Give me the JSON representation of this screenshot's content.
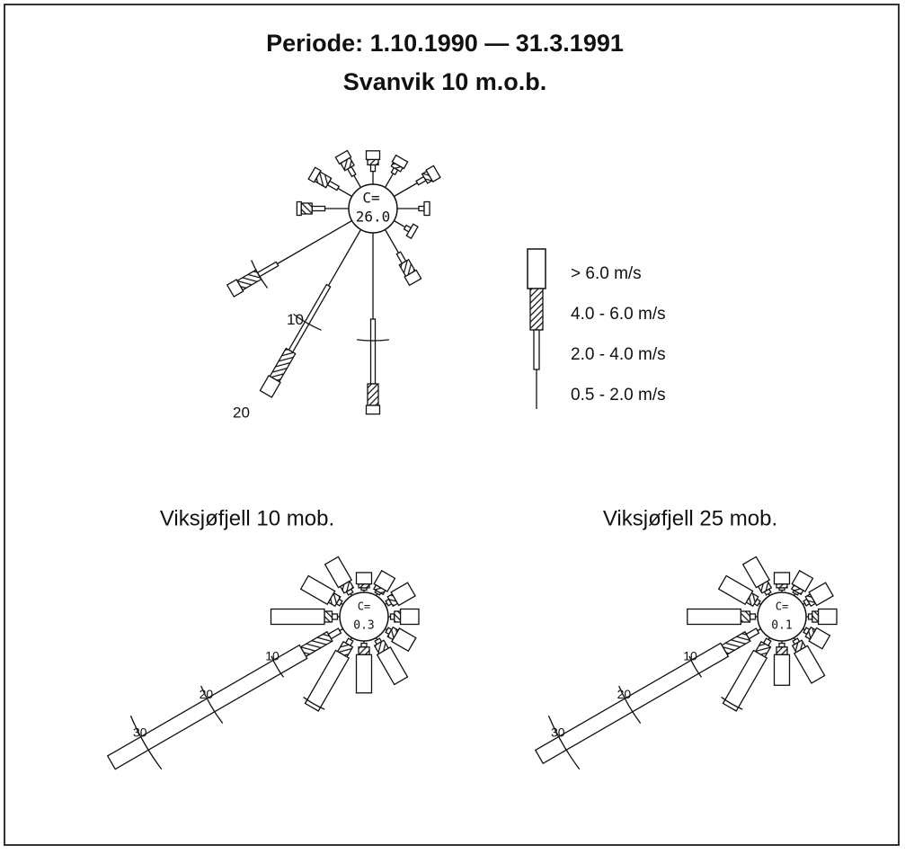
{
  "chart_data": [
    {
      "type": "windrose",
      "title": "Periode: 1.10.1990 — 31.3.1991",
      "subtitle": "Svanvik 10 m.o.b.",
      "calm_prefix": "C=",
      "calm": 26.0,
      "calm_value_label": "26.0",
      "directions": [
        0,
        30,
        60,
        90,
        120,
        150,
        180,
        210,
        240,
        270,
        300,
        330
      ],
      "rings": [
        10,
        20
      ],
      "series": [
        {
          "name": "0.5 - 2.0 m/s",
          "values": [
            1.2,
            1.5,
            2.5,
            2,
            1.2,
            2.5,
            8,
            6,
            8,
            2.2,
            1.5,
            1.3
          ]
        },
        {
          "name": "2.0 - 4.0 m/s",
          "values": [
            0.6,
            0.5,
            0.8,
            0.5,
            0.5,
            1,
            6,
            7,
            2,
            1.2,
            1,
            0.8
          ]
        },
        {
          "name": "4.0 - 6.0 m/s",
          "values": [
            0.5,
            0.4,
            0.5,
            0,
            0,
            1.2,
            2,
            3,
            2,
            1,
            1.2,
            0.8
          ]
        },
        {
          "name": "> 6.0 m/s",
          "values": [
            0.8,
            0.7,
            0.8,
            0.5,
            0.5,
            0.9,
            0.8,
            1.6,
            1,
            0.4,
            0.6,
            0.7
          ]
        }
      ]
    },
    {
      "type": "windrose",
      "title": "Viksjøfjell 10 mob.",
      "calm_prefix": "C=",
      "calm": 0.3,
      "calm_value_label": "0.3",
      "directions": [
        0,
        30,
        60,
        90,
        120,
        150,
        180,
        210,
        240,
        270,
        300,
        330
      ],
      "rings": [
        10,
        20,
        30
      ],
      "series": [
        {
          "values": [
            0.3,
            0.3,
            0.3,
            0.3,
            0.3,
            0.3,
            0.3,
            0.3,
            0.5,
            0.3,
            0.3,
            0.3
          ]
        },
        {
          "values": [
            0.3,
            0.3,
            0.5,
            0.5,
            0.5,
            0.5,
            0.5,
            0.7,
            1.5,
            0.7,
            0.5,
            0.5
          ]
        },
        {
          "values": [
            0.5,
            0.6,
            0.7,
            0.8,
            0.8,
            1.2,
            1,
            1.5,
            4,
            1,
            1,
            1
          ]
        },
        {
          "values": [
            1.5,
            2,
            2.5,
            2.4,
            2.5,
            4.5,
            5,
            8,
            29,
            7,
            4,
            3.5
          ]
        }
      ]
    },
    {
      "type": "windrose",
      "title": "Viksjøfjell 25 mob.",
      "calm_prefix": "C=",
      "calm": 0.1,
      "calm_value_label": "0.1",
      "directions": [
        0,
        30,
        60,
        90,
        120,
        150,
        180,
        210,
        240,
        270,
        300,
        330
      ],
      "rings": [
        10,
        20,
        30
      ],
      "series": [
        {
          "values": [
            0.3,
            0.3,
            0.3,
            0.3,
            0.3,
            0.3,
            0.3,
            0.3,
            0.5,
            0.3,
            0.3,
            0.3
          ]
        },
        {
          "values": [
            0.3,
            0.3,
            0.5,
            0.5,
            0.5,
            0.5,
            0.5,
            0.7,
            1.5,
            0.7,
            0.5,
            0.5
          ]
        },
        {
          "values": [
            0.5,
            0.6,
            0.7,
            0.8,
            0.7,
            1,
            1,
            1.5,
            3.5,
            1.2,
            1,
            1
          ]
        },
        {
          "values": [
            1.5,
            2,
            2.5,
            2.4,
            2,
            4.5,
            4,
            8,
            28,
            7,
            4,
            3.5
          ]
        }
      ]
    }
  ]
}
